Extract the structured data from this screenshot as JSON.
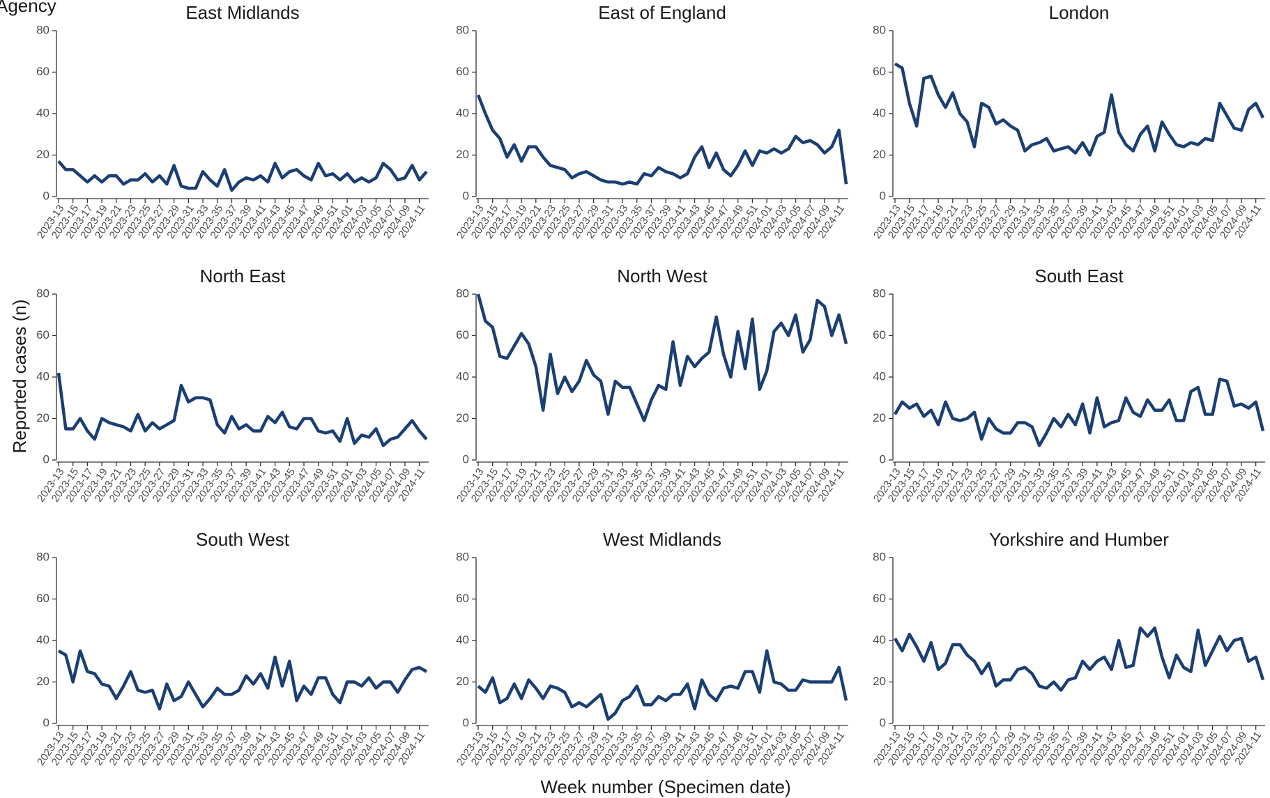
{
  "title": "Agency",
  "ylabel": "Reported cases (n)",
  "xlabel": "Week number (Specimen date)",
  "chart_data": [
    {
      "type": "line",
      "title": "East Midlands",
      "color": "#1b3f73",
      "ylim": [
        0,
        80
      ],
      "yticks": [
        0,
        20,
        40,
        60,
        80
      ],
      "categories": [
        "2023-13",
        null,
        "2023-15",
        null,
        "2023-17",
        null,
        "2023-19",
        null,
        "2023-21",
        null,
        "2023-23",
        null,
        "2023-25",
        null,
        "2023-27",
        null,
        "2023-29",
        null,
        "2023-31",
        null,
        "2023-33",
        null,
        "2023-35",
        null,
        "2023-37",
        null,
        "2023-39",
        null,
        "2023-41",
        null,
        "2023-43",
        null,
        "2023-45",
        null,
        "2023-47",
        null,
        "2023-49",
        null,
        "2023-51",
        null,
        "2024-01",
        null,
        "2024-03",
        null,
        "2024-05",
        null,
        "2024-07",
        null,
        "2024-09",
        null,
        "2024-11",
        null
      ],
      "values": [
        17,
        13,
        13,
        10,
        7,
        10,
        7,
        10,
        10,
        6,
        8,
        8,
        11,
        7,
        10,
        6,
        15,
        5,
        4,
        4,
        12,
        8,
        5,
        13,
        3,
        7,
        9,
        8,
        10,
        7,
        16,
        9,
        12,
        13,
        10,
        8,
        16,
        10,
        11,
        8,
        11,
        7,
        9,
        7,
        9,
        16,
        13,
        8,
        9,
        15,
        8,
        12
      ]
    },
    {
      "type": "line",
      "title": "East of England",
      "color": "#1b3f73",
      "ylim": [
        0,
        80
      ],
      "yticks": [
        0,
        20,
        40,
        60,
        80
      ],
      "categories": [
        "2023-13",
        null,
        "2023-15",
        null,
        "2023-17",
        null,
        "2023-19",
        null,
        "2023-21",
        null,
        "2023-23",
        null,
        "2023-25",
        null,
        "2023-27",
        null,
        "2023-29",
        null,
        "2023-31",
        null,
        "2023-33",
        null,
        "2023-35",
        null,
        "2023-37",
        null,
        "2023-39",
        null,
        "2023-41",
        null,
        "2023-43",
        null,
        "2023-45",
        null,
        "2023-47",
        null,
        "2023-49",
        null,
        "2023-51",
        null,
        "2024-01",
        null,
        "2024-03",
        null,
        "2024-05",
        null,
        "2024-07",
        null,
        "2024-09",
        null,
        "2024-11",
        null
      ],
      "values": [
        49,
        40,
        32,
        28,
        19,
        25,
        17,
        24,
        24,
        19,
        15,
        14,
        13,
        9,
        11,
        12,
        10,
        8,
        7,
        7,
        6,
        7,
        6,
        11,
        10,
        14,
        12,
        11,
        9,
        11,
        19,
        24,
        14,
        21,
        13,
        10,
        15,
        22,
        15,
        22,
        21,
        23,
        21,
        23,
        29,
        26,
        27,
        25,
        21,
        24,
        32,
        6
      ]
    },
    {
      "type": "line",
      "title": "London",
      "color": "#1b3f73",
      "ylim": [
        0,
        80
      ],
      "yticks": [
        0,
        20,
        40,
        60,
        80
      ],
      "categories": [
        "2023-13",
        null,
        "2023-15",
        null,
        "2023-17",
        null,
        "2023-19",
        null,
        "2023-21",
        null,
        "2023-23",
        null,
        "2023-25",
        null,
        "2023-27",
        null,
        "2023-29",
        null,
        "2023-31",
        null,
        "2023-33",
        null,
        "2023-35",
        null,
        "2023-37",
        null,
        "2023-39",
        null,
        "2023-41",
        null,
        "2023-43",
        null,
        "2023-45",
        null,
        "2023-47",
        null,
        "2023-49",
        null,
        "2023-51",
        null,
        "2024-01",
        null,
        "2024-03",
        null,
        "2024-05",
        null,
        "2024-07",
        null,
        "2024-09",
        null,
        "2024-11",
        null
      ],
      "values": [
        64,
        62,
        45,
        34,
        57,
        58,
        49,
        43,
        50,
        40,
        36,
        24,
        45,
        43,
        35,
        37,
        34,
        32,
        22,
        25,
        26,
        28,
        22,
        23,
        24,
        21,
        26,
        20,
        29,
        31,
        49,
        31,
        25,
        22,
        30,
        34,
        22,
        36,
        30,
        25,
        24,
        26,
        25,
        28,
        27,
        45,
        39,
        33,
        32,
        42,
        45,
        38
      ]
    },
    {
      "type": "line",
      "title": "North East",
      "color": "#1b3f73",
      "ylim": [
        0,
        80
      ],
      "yticks": [
        0,
        20,
        40,
        60,
        80
      ],
      "categories": [
        "2023-13",
        null,
        "2023-15",
        null,
        "2023-17",
        null,
        "2023-19",
        null,
        "2023-21",
        null,
        "2023-23",
        null,
        "2023-25",
        null,
        "2023-27",
        null,
        "2023-29",
        null,
        "2023-31",
        null,
        "2023-33",
        null,
        "2023-35",
        null,
        "2023-37",
        null,
        "2023-39",
        null,
        "2023-41",
        null,
        "2023-43",
        null,
        "2023-45",
        null,
        "2023-47",
        null,
        "2023-49",
        null,
        "2023-51",
        null,
        "2024-01",
        null,
        "2024-03",
        null,
        "2024-05",
        null,
        "2024-07",
        null,
        "2024-09",
        null,
        "2024-11",
        null
      ],
      "values": [
        42,
        15,
        15,
        20,
        14,
        10,
        20,
        18,
        17,
        16,
        14,
        22,
        14,
        18,
        15,
        17,
        19,
        36,
        28,
        30,
        30,
        29,
        17,
        13,
        21,
        15,
        17,
        14,
        14,
        21,
        18,
        23,
        16,
        15,
        20,
        20,
        14,
        13,
        14,
        9,
        20,
        8,
        12,
        11,
        15,
        7,
        10,
        11,
        15,
        19,
        14,
        10
      ]
    },
    {
      "type": "line",
      "title": "North West",
      "color": "#1b3f73",
      "ylim": [
        0,
        80
      ],
      "yticks": [
        0,
        20,
        40,
        60,
        80
      ],
      "categories": [
        "2023-13",
        null,
        "2023-15",
        null,
        "2023-17",
        null,
        "2023-19",
        null,
        "2023-21",
        null,
        "2023-23",
        null,
        "2023-25",
        null,
        "2023-27",
        null,
        "2023-29",
        null,
        "2023-31",
        null,
        "2023-33",
        null,
        "2023-35",
        null,
        "2023-37",
        null,
        "2023-39",
        null,
        "2023-41",
        null,
        "2023-43",
        null,
        "2023-45",
        null,
        "2023-47",
        null,
        "2023-49",
        null,
        "2023-51",
        null,
        "2024-01",
        null,
        "2024-03",
        null,
        "2024-05",
        null,
        "2024-07",
        null,
        "2024-09",
        null,
        "2024-11",
        null
      ],
      "values": [
        80,
        67,
        64,
        50,
        49,
        55,
        61,
        56,
        45,
        24,
        51,
        32,
        40,
        33,
        38,
        48,
        41,
        38,
        22,
        38,
        35,
        35,
        27,
        19,
        29,
        36,
        34,
        57,
        36,
        50,
        45,
        49,
        52,
        69,
        51,
        40,
        62,
        44,
        68,
        34,
        43,
        62,
        66,
        60,
        70,
        52,
        58,
        77,
        74,
        60,
        70,
        56
      ]
    },
    {
      "type": "line",
      "title": "South East",
      "color": "#1b3f73",
      "ylim": [
        0,
        80
      ],
      "yticks": [
        0,
        20,
        40,
        60,
        80
      ],
      "categories": [
        "2023-13",
        null,
        "2023-15",
        null,
        "2023-17",
        null,
        "2023-19",
        null,
        "2023-21",
        null,
        "2023-23",
        null,
        "2023-25",
        null,
        "2023-27",
        null,
        "2023-29",
        null,
        "2023-31",
        null,
        "2023-33",
        null,
        "2023-35",
        null,
        "2023-37",
        null,
        "2023-39",
        null,
        "2023-41",
        null,
        "2023-43",
        null,
        "2023-45",
        null,
        "2023-47",
        null,
        "2023-49",
        null,
        "2023-51",
        null,
        "2024-01",
        null,
        "2024-03",
        null,
        "2024-05",
        null,
        "2024-07",
        null,
        "2024-09",
        null,
        "2024-11",
        null
      ],
      "values": [
        22,
        28,
        25,
        27,
        21,
        24,
        17,
        28,
        20,
        19,
        20,
        23,
        10,
        20,
        15,
        13,
        13,
        18,
        18,
        16,
        7,
        13,
        20,
        16,
        22,
        17,
        27,
        13,
        30,
        16,
        18,
        19,
        30,
        23,
        21,
        29,
        24,
        24,
        29,
        19,
        19,
        33,
        35,
        22,
        22,
        39,
        38,
        26,
        27,
        25,
        28,
        14
      ]
    },
    {
      "type": "line",
      "title": "South West",
      "color": "#1b3f73",
      "ylim": [
        0,
        80
      ],
      "yticks": [
        0,
        20,
        40,
        60,
        80
      ],
      "categories": [
        "2023-13",
        null,
        "2023-15",
        null,
        "2023-17",
        null,
        "2023-19",
        null,
        "2023-21",
        null,
        "2023-23",
        null,
        "2023-25",
        null,
        "2023-27",
        null,
        "2023-29",
        null,
        "2023-31",
        null,
        "2023-33",
        null,
        "2023-35",
        null,
        "2023-37",
        null,
        "2023-39",
        null,
        "2023-41",
        null,
        "2023-43",
        null,
        "2023-45",
        null,
        "2023-47",
        null,
        "2023-49",
        null,
        "2023-51",
        null,
        "2024-01",
        null,
        "2024-03",
        null,
        "2024-05",
        null,
        "2024-07",
        null,
        "2024-09",
        null,
        "2024-11",
        null
      ],
      "values": [
        35,
        33,
        20,
        35,
        25,
        24,
        19,
        18,
        12,
        18,
        25,
        16,
        15,
        16,
        7,
        19,
        11,
        13,
        20,
        14,
        8,
        12,
        17,
        14,
        14,
        16,
        23,
        19,
        24,
        17,
        32,
        18,
        30,
        11,
        18,
        14,
        22,
        22,
        14,
        10,
        20,
        20,
        18,
        22,
        17,
        20,
        20,
        15,
        21,
        26,
        27,
        25
      ]
    },
    {
      "type": "line",
      "title": "West Midlands",
      "color": "#1b3f73",
      "ylim": [
        0,
        80
      ],
      "yticks": [
        0,
        20,
        40,
        60,
        80
      ],
      "categories": [
        "2023-13",
        null,
        "2023-15",
        null,
        "2023-17",
        null,
        "2023-19",
        null,
        "2023-21",
        null,
        "2023-23",
        null,
        "2023-25",
        null,
        "2023-27",
        null,
        "2023-29",
        null,
        "2023-31",
        null,
        "2023-33",
        null,
        "2023-35",
        null,
        "2023-37",
        null,
        "2023-39",
        null,
        "2023-41",
        null,
        "2023-43",
        null,
        "2023-45",
        null,
        "2023-47",
        null,
        "2023-49",
        null,
        "2023-51",
        null,
        "2024-01",
        null,
        "2024-03",
        null,
        "2024-05",
        null,
        "2024-07",
        null,
        "2024-09",
        null,
        "2024-11",
        null
      ],
      "values": [
        18,
        15,
        22,
        10,
        12,
        19,
        12,
        21,
        17,
        12,
        18,
        17,
        15,
        8,
        10,
        8,
        11,
        14,
        2,
        5,
        11,
        13,
        18,
        9,
        9,
        13,
        11,
        14,
        14,
        19,
        7,
        21,
        14,
        11,
        17,
        18,
        17,
        25,
        25,
        15,
        35,
        20,
        19,
        16,
        16,
        21,
        20,
        20,
        20,
        20,
        27,
        11
      ]
    },
    {
      "type": "line",
      "title": "Yorkshire and Humber",
      "color": "#1b3f73",
      "ylim": [
        0,
        80
      ],
      "yticks": [
        0,
        20,
        40,
        60,
        80
      ],
      "categories": [
        "2023-13",
        null,
        "2023-15",
        null,
        "2023-17",
        null,
        "2023-19",
        null,
        "2023-21",
        null,
        "2023-23",
        null,
        "2023-25",
        null,
        "2023-27",
        null,
        "2023-29",
        null,
        "2023-31",
        null,
        "2023-33",
        null,
        "2023-35",
        null,
        "2023-37",
        null,
        "2023-39",
        null,
        "2023-41",
        null,
        "2023-43",
        null,
        "2023-45",
        null,
        "2023-47",
        null,
        "2023-49",
        null,
        "2023-51",
        null,
        "2024-01",
        null,
        "2024-03",
        null,
        "2024-05",
        null,
        "2024-07",
        null,
        "2024-09",
        null,
        "2024-11",
        null
      ],
      "values": [
        41,
        35,
        43,
        37,
        30,
        39,
        26,
        29,
        38,
        38,
        33,
        30,
        24,
        29,
        18,
        21,
        21,
        26,
        27,
        24,
        18,
        17,
        20,
        16,
        21,
        22,
        30,
        26,
        30,
        32,
        26,
        40,
        27,
        28,
        46,
        42,
        46,
        32,
        22,
        33,
        27,
        25,
        45,
        28,
        35,
        42,
        35,
        40,
        41,
        30,
        32,
        21
      ]
    }
  ]
}
